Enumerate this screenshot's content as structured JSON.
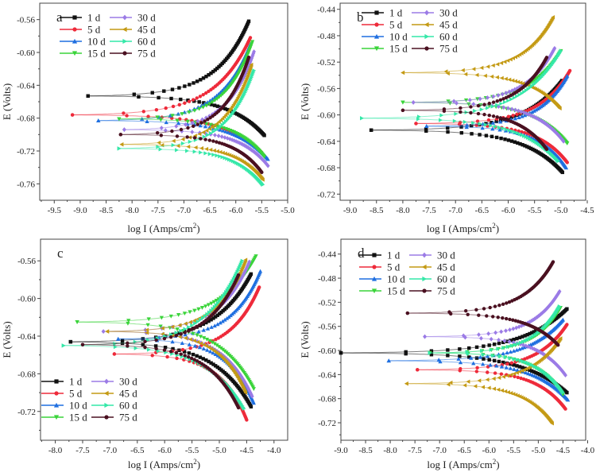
{
  "chart_data": [
    {
      "type": "line",
      "panel_label": "a",
      "xlabel": "log I  (Amps/cm",
      "xlabel_sup": "2",
      "xlabel_close": ")",
      "ylabel": "E (Volts)",
      "xlim": [
        -9.78,
        -5.0
      ],
      "ylim": [
        -0.78,
        -0.54
      ],
      "xticks": [
        "-9.5",
        "-9.0",
        "-8.5",
        "-8.0",
        "-7.5",
        "-7.0",
        "-6.5",
        "-6.0",
        "-5.5",
        "-5.0"
      ],
      "yticks": [
        "-0.56",
        "-0.60",
        "-0.64",
        "-0.68",
        "-0.72",
        "-0.76"
      ],
      "legend_placement": "top-left",
      "grid": false,
      "series": [
        {
          "name": "1 d",
          "ecorr": -0.653,
          "min_logI": -8.85,
          "anodic_end": [
            -5.75,
            -0.562
          ],
          "cathodic_end": [
            -5.45,
            -0.701
          ]
        },
        {
          "name": "5 d",
          "ecorr": -0.676,
          "min_logI": -9.15,
          "anodic_end": [
            -5.72,
            -0.582
          ],
          "cathodic_end": [
            -5.5,
            -0.722
          ]
        },
        {
          "name": "10 d",
          "ecorr": -0.683,
          "min_logI": -8.65,
          "anodic_end": [
            -5.72,
            -0.59
          ],
          "cathodic_end": [
            -5.38,
            -0.73
          ]
        },
        {
          "name": "15 d",
          "ecorr": -0.681,
          "min_logI": -8.25,
          "anodic_end": [
            -5.68,
            -0.587
          ],
          "cathodic_end": [
            -5.45,
            -0.727
          ]
        },
        {
          "name": "30 d",
          "ecorr": -0.694,
          "min_logI": -8.15,
          "anodic_end": [
            -5.65,
            -0.599
          ],
          "cathodic_end": [
            -5.38,
            -0.738
          ]
        },
        {
          "name": "45 d",
          "ecorr": -0.712,
          "min_logI": -8.2,
          "anodic_end": [
            -5.7,
            -0.615
          ],
          "cathodic_end": [
            -5.48,
            -0.755
          ]
        },
        {
          "name": "60 d",
          "ecorr": -0.717,
          "min_logI": -8.25,
          "anodic_end": [
            -5.65,
            -0.622
          ],
          "cathodic_end": [
            -5.48,
            -0.761
          ]
        },
        {
          "name": "75 d",
          "ecorr": -0.7,
          "min_logI": -8.22,
          "anodic_end": [
            -5.75,
            -0.606
          ],
          "cathodic_end": [
            -5.5,
            -0.746
          ]
        }
      ]
    },
    {
      "type": "line",
      "panel_label": "b",
      "xlabel": "log I  (Amps/cm",
      "xlabel_sup": "2",
      "xlabel_close": ")",
      "ylabel": "E (Volts)",
      "xlim": [
        -9.19,
        -4.53
      ],
      "ylim": [
        -0.7293,
        -0.4307
      ],
      "xticks": [
        "-9.0",
        "-8.5",
        "-8.0",
        "-7.5",
        "-7.0",
        "-6.5",
        "-6.0",
        "-5.5",
        "-5.0",
        "-4.5"
      ],
      "yticks": [
        "-0.44",
        "-0.48",
        "-0.52",
        "-0.56",
        "-0.60",
        "-0.64",
        "-0.68",
        "-0.72"
      ],
      "legend_placement": "top-left",
      "grid": false,
      "series": [
        {
          "name": "1 d",
          "ecorr": -0.623,
          "min_logI": -8.6,
          "anodic_end": [
            -4.98,
            -0.548
          ],
          "cathodic_end": [
            -4.97,
            -0.687
          ]
        },
        {
          "name": "5 d",
          "ecorr": -0.613,
          "min_logI": -7.75,
          "anodic_end": [
            -4.83,
            -0.533
          ],
          "cathodic_end": [
            -4.88,
            -0.672
          ]
        },
        {
          "name": "10 d",
          "ecorr": -0.617,
          "min_logI": -7.55,
          "anodic_end": [
            -4.88,
            -0.541
          ],
          "cathodic_end": [
            -4.9,
            -0.68
          ]
        },
        {
          "name": "15 d",
          "ecorr": -0.581,
          "min_logI": -8.0,
          "anodic_end": [
            -5.0,
            -0.503
          ],
          "cathodic_end": [
            -4.88,
            -0.643
          ]
        },
        {
          "name": "30 d",
          "ecorr": -0.581,
          "min_logI": -7.8,
          "anodic_end": [
            -5.12,
            -0.499
          ],
          "cathodic_end": [
            -4.95,
            -0.64
          ]
        },
        {
          "name": "45 d",
          "ecorr": -0.536,
          "min_logI": -8.0,
          "anodic_end": [
            -5.15,
            -0.452
          ],
          "cathodic_end": [
            -5.02,
            -0.59
          ]
        },
        {
          "name": "60 d",
          "ecorr": -0.605,
          "min_logI": -8.78,
          "anodic_end": [
            -5.0,
            -0.503
          ],
          "cathodic_end": [
            -5.05,
            -0.67
          ]
        },
        {
          "name": "75 d",
          "ecorr": -0.593,
          "min_logI": -8.0,
          "anodic_end": [
            -5.27,
            -0.513
          ],
          "cathodic_end": [
            -5.27,
            -0.652
          ]
        }
      ]
    },
    {
      "type": "line",
      "panel_label": "c",
      "xlabel": "log I  (Amps/cm",
      "xlabel_sup": "2",
      "xlabel_close": ")",
      "ylabel": "E (Volts)",
      "xlim": [
        -8.27,
        -3.75
      ],
      "ylim": [
        -0.7506,
        -0.537
      ],
      "xticks": [
        "-8.0",
        "-7.5",
        "-7.0",
        "-6.5",
        "-6.0",
        "-5.5",
        "-5.0",
        "-4.5",
        "-4.0"
      ],
      "yticks": [
        "-0.56",
        "-0.60",
        "-0.64",
        "-0.68",
        "-0.72"
      ],
      "legend_placement": "bottom-left",
      "grid": false,
      "series": [
        {
          "name": "1 d",
          "ecorr": -0.646,
          "min_logI": -7.72,
          "anodic_end": [
            -4.42,
            -0.574
          ],
          "cathodic_end": [
            -4.42,
            -0.715
          ]
        },
        {
          "name": "5 d",
          "ecorr": -0.659,
          "min_logI": -6.92,
          "anodic_end": [
            -4.27,
            -0.588
          ],
          "cathodic_end": [
            -4.5,
            -0.729
          ]
        },
        {
          "name": "10 d",
          "ecorr": -0.643,
          "min_logI": -6.85,
          "anodic_end": [
            -4.25,
            -0.571
          ],
          "cathodic_end": [
            -4.37,
            -0.711
          ]
        },
        {
          "name": "15 d",
          "ecorr": -0.625,
          "min_logI": -7.6,
          "anodic_end": [
            -4.33,
            -0.555
          ],
          "cathodic_end": [
            -4.37,
            -0.696
          ]
        },
        {
          "name": "30 d",
          "ecorr": -0.635,
          "min_logI": -7.12,
          "anodic_end": [
            -4.45,
            -0.561
          ],
          "cathodic_end": [
            -4.4,
            -0.704
          ]
        },
        {
          "name": "45 d",
          "ecorr": -0.635,
          "min_logI": -7.05,
          "anodic_end": [
            -4.52,
            -0.559
          ],
          "cathodic_end": [
            -4.52,
            -0.7
          ]
        },
        {
          "name": "60 d",
          "ecorr": -0.65,
          "min_logI": -7.85,
          "anodic_end": [
            -4.58,
            -0.56
          ],
          "cathodic_end": [
            -4.55,
            -0.717
          ]
        },
        {
          "name": "75 d",
          "ecorr": -0.649,
          "min_logI": -7.5,
          "anodic_end": [
            -4.65,
            -0.575
          ],
          "cathodic_end": [
            -4.65,
            -0.716
          ]
        }
      ]
    },
    {
      "type": "line",
      "panel_label": "d",
      "xlabel": "log I  (Amps/cm",
      "xlabel_sup": "2",
      "xlabel_close": ")",
      "ylabel": "E (Volts)",
      "xlim": [
        -9.0,
        -4.04
      ],
      "ylim": [
        -0.749,
        -0.4153
      ],
      "xticks": [
        "-9.0",
        "-8.5",
        "-8.0",
        "-7.5",
        "-7.0",
        "-6.5",
        "-6.0",
        "-5.5",
        "-5.0",
        "-4.5",
        "-4.0"
      ],
      "yticks": [
        "-0.44",
        "-0.48",
        "-0.52",
        "-0.56",
        "-0.60",
        "-0.64",
        "-0.68",
        "-0.72"
      ],
      "legend_placement": "top-left",
      "grid": false,
      "series": [
        {
          "name": "1 d",
          "ecorr": -0.604,
          "min_logI": -9.0,
          "anodic_end": [
            -4.42,
            -0.531
          ],
          "cathodic_end": [
            -4.42,
            -0.67
          ]
        },
        {
          "name": "5 d",
          "ecorr": -0.632,
          "min_logI": -7.45,
          "anodic_end": [
            -4.42,
            -0.557
          ],
          "cathodic_end": [
            -4.45,
            -0.697
          ]
        },
        {
          "name": "10 d",
          "ecorr": -0.617,
          "min_logI": -8.03,
          "anodic_end": [
            -4.5,
            -0.549
          ],
          "cathodic_end": [
            -4.4,
            -0.682
          ]
        },
        {
          "name": "15 d",
          "ecorr": -0.604,
          "min_logI": -7.2,
          "anodic_end": [
            -4.55,
            -0.529
          ],
          "cathodic_end": [
            -4.5,
            -0.673
          ]
        },
        {
          "name": "30 d",
          "ecorr": -0.577,
          "min_logI": -7.3,
          "anodic_end": [
            -4.57,
            -0.502
          ],
          "cathodic_end": [
            -4.45,
            -0.641
          ]
        },
        {
          "name": "45 d",
          "ecorr": -0.655,
          "min_logI": -7.67,
          "anodic_end": [
            -4.55,
            -0.58
          ],
          "cathodic_end": [
            -4.72,
            -0.721
          ]
        },
        {
          "name": "60 d",
          "ecorr": -0.604,
          "min_logI": -7.2,
          "anodic_end": [
            -4.57,
            -0.527
          ],
          "cathodic_end": [
            -4.5,
            -0.67
          ]
        },
        {
          "name": "75 d",
          "ecorr": -0.538,
          "min_logI": -7.65,
          "anodic_end": [
            -4.7,
            -0.453
          ],
          "cathodic_end": [
            -4.6,
            -0.591
          ]
        }
      ]
    }
  ],
  "series_style": [
    {
      "color": "#111111",
      "marker": "square"
    },
    {
      "color": "#ee2a3a",
      "marker": "circle"
    },
    {
      "color": "#1f6fe0",
      "marker": "triangle-up"
    },
    {
      "color": "#3ad43a",
      "marker": "triangle-down"
    },
    {
      "color": "#9b7be6",
      "marker": "diamond"
    },
    {
      "color": "#c49a14",
      "marker": "triangle-left"
    },
    {
      "color": "#34e8a8",
      "marker": "triangle-right"
    },
    {
      "color": "#4a1020",
      "marker": "circle"
    }
  ]
}
